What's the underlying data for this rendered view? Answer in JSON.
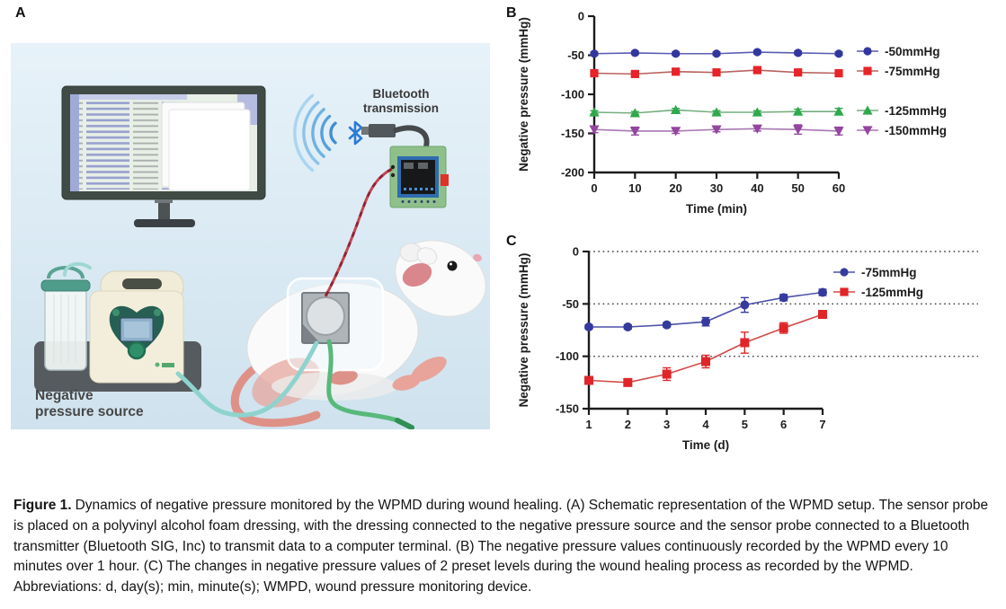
{
  "panels": {
    "a": {
      "label": "A",
      "bluetooth_label_line1": "Bluetooth",
      "bluetooth_label_line2": "transmission",
      "source_label_line1": "Negative",
      "source_label_line2": "pressure source"
    },
    "b": {
      "label": "B"
    },
    "c": {
      "label": "C"
    }
  },
  "caption": {
    "tag": "Figure 1.",
    "body": "Dynamics of negative pressure monitored by the WPMD during wound healing. (A) Schematic representation of the WPMD setup. The sensor probe is placed on a polyvinyl alcohol foam dressing, with the dressing connected to the negative pressure source and the sensor probe connected to a Bluetooth transmitter (Bluetooth SIG, Inc) to transmit data to a computer terminal. (B) The negative pressure values continuously recorded by the WPMD every 10 minutes over 1 hour. (C) The changes in negative pressure values of 2 preset levels during the wound healing process as recorded by the WPMD. Abbreviations: d, day(s); min, minute(s); WMPD, wound pressure monitoring device."
  },
  "chart_data": [
    {
      "panel": "B",
      "type": "line",
      "title": "",
      "xlabel": "Time (min)",
      "ylabel": "Negative pressure (mmHg)",
      "xlim": [
        0,
        60
      ],
      "ylim": [
        -200,
        0
      ],
      "x": [
        0,
        10,
        20,
        30,
        40,
        50,
        60
      ],
      "xticks": [
        0,
        10,
        20,
        30,
        40,
        50,
        60
      ],
      "yticks": [
        0,
        -50,
        -100,
        -150,
        -200
      ],
      "grid": false,
      "legend_position": "right",
      "series": [
        {
          "name": "-50mmHg",
          "marker": "circle",
          "color": "#32379f",
          "line_color": "#585cb2",
          "values": [
            -48,
            -47,
            -48,
            -48,
            -46,
            -47,
            -48
          ],
          "errors": [
            2,
            2,
            2,
            2,
            2,
            2,
            2
          ]
        },
        {
          "name": "-75mmHg",
          "marker": "square",
          "color": "#e8232a",
          "line_color": "#b8625d",
          "values": [
            -73,
            -74,
            -71,
            -72,
            -69,
            -72,
            -73
          ],
          "errors": [
            2,
            2,
            2,
            2,
            2,
            2,
            3
          ]
        },
        {
          "name": "-125mmHg",
          "marker": "triangle-up",
          "color": "#2fa94d",
          "line_color": "#74ad7e",
          "values": [
            -123,
            -124,
            -120,
            -123,
            -123,
            -122,
            -122
          ],
          "errors": [
            2,
            2,
            2,
            2,
            2,
            3,
            4
          ]
        },
        {
          "name": "-150mmHg",
          "marker": "triangle-down",
          "color": "#93469f",
          "line_color": "#a877b2",
          "values": [
            -145,
            -147,
            -147,
            -145,
            -144,
            -145,
            -147
          ],
          "errors": [
            4,
            5,
            3,
            3,
            3,
            6,
            5
          ]
        }
      ]
    },
    {
      "panel": "C",
      "type": "line",
      "title": "",
      "xlabel": "Time (d)",
      "ylabel": "Negative pressure (mmHg)",
      "xlim": [
        1,
        7
      ],
      "ylim": [
        -150,
        0
      ],
      "x": [
        1,
        2,
        3,
        4,
        5,
        6,
        7
      ],
      "xticks": [
        1,
        2,
        3,
        4,
        5,
        6,
        7
      ],
      "yticks": [
        0,
        -50,
        -100,
        -150
      ],
      "dotted_gridlines": [
        0,
        -50,
        -100
      ],
      "grid": true,
      "legend_position": "top-right",
      "series": [
        {
          "name": "-75mmHg",
          "marker": "circle",
          "color": "#353a9e",
          "line_color": "#4d51ab",
          "values": [
            -72,
            -72,
            -70,
            -67,
            -51,
            -44,
            -39
          ],
          "errors": [
            2,
            2,
            2,
            4,
            7,
            3,
            3
          ]
        },
        {
          "name": "-125mmHg",
          "marker": "square",
          "color": "#e02529",
          "line_color": "#d24a4a",
          "values": [
            -123,
            -125,
            -117,
            -105,
            -87,
            -73,
            -60
          ],
          "errors": [
            3,
            2,
            6,
            6,
            10,
            5,
            3
          ]
        }
      ]
    }
  ]
}
